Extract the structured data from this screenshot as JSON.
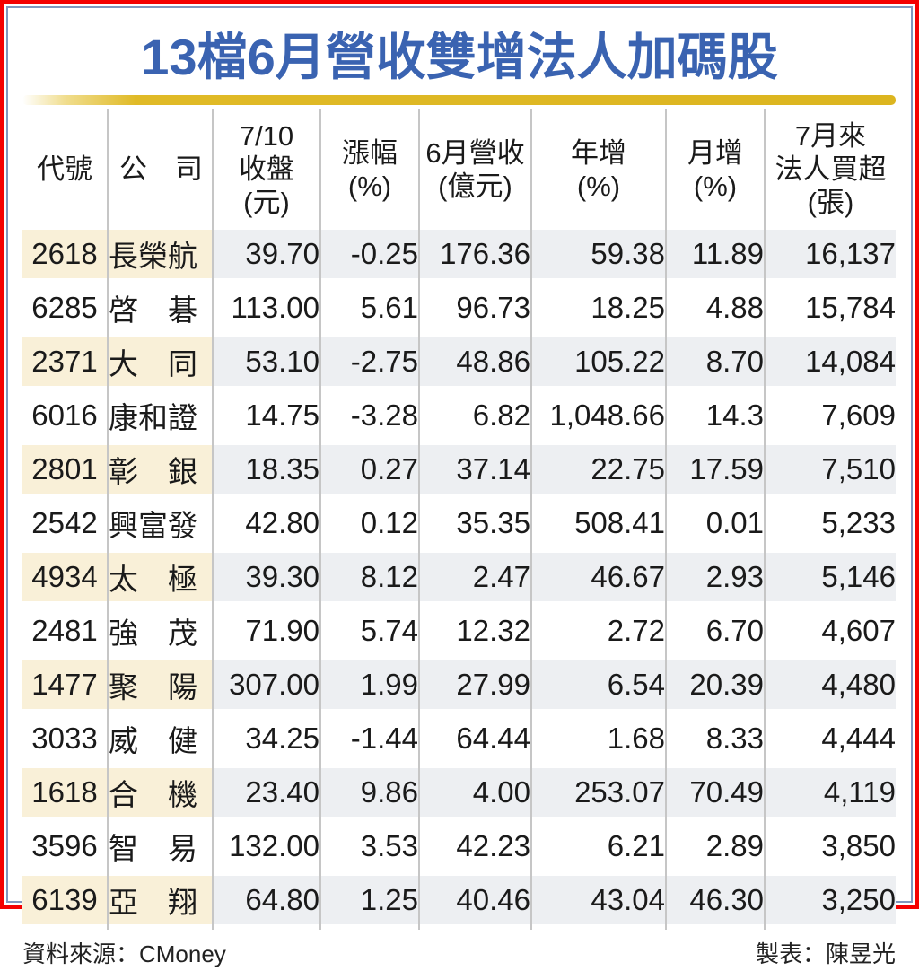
{
  "title": "13檔6月營收雙增法人加碼股",
  "chart_data": {
    "type": "table",
    "title": "13檔6月營收雙增法人加碼股",
    "columns": [
      {
        "id": "code",
        "label_lines": [
          "代號"
        ]
      },
      {
        "id": "company",
        "label_lines": [
          "公　司"
        ]
      },
      {
        "id": "close",
        "label_lines": [
          "7/10",
          "收盤",
          "(元)"
        ]
      },
      {
        "id": "change",
        "label_lines": [
          "漲幅",
          "(%)"
        ]
      },
      {
        "id": "revenue",
        "label_lines": [
          "6月營收",
          "(億元)"
        ]
      },
      {
        "id": "yoy",
        "label_lines": [
          "年增",
          "(%)"
        ]
      },
      {
        "id": "mom",
        "label_lines": [
          "月增",
          "(%)"
        ]
      },
      {
        "id": "buy",
        "label_lines": [
          "7月來",
          "法人買超",
          "(張)"
        ]
      }
    ],
    "rows": [
      {
        "code": "2618",
        "company": "長榮航",
        "close": "39.70",
        "change": "-0.25",
        "revenue": "176.36",
        "yoy": "59.38",
        "mom": "11.89",
        "buy": "16,137"
      },
      {
        "code": "6285",
        "company": "啓　碁",
        "close": "113.00",
        "change": "5.61",
        "revenue": "96.73",
        "yoy": "18.25",
        "mom": "4.88",
        "buy": "15,784"
      },
      {
        "code": "2371",
        "company": "大　同",
        "close": "53.10",
        "change": "-2.75",
        "revenue": "48.86",
        "yoy": "105.22",
        "mom": "8.70",
        "buy": "14,084"
      },
      {
        "code": "6016",
        "company": "康和證",
        "close": "14.75",
        "change": "-3.28",
        "revenue": "6.82",
        "yoy": "1,048.66",
        "mom": "14.3",
        "buy": "7,609"
      },
      {
        "code": "2801",
        "company": "彰　銀",
        "close": "18.35",
        "change": "0.27",
        "revenue": "37.14",
        "yoy": "22.75",
        "mom": "17.59",
        "buy": "7,510"
      },
      {
        "code": "2542",
        "company": "興富發",
        "close": "42.80",
        "change": "0.12",
        "revenue": "35.35",
        "yoy": "508.41",
        "mom": "0.01",
        "buy": "5,233"
      },
      {
        "code": "4934",
        "company": "太　極",
        "close": "39.30",
        "change": "8.12",
        "revenue": "2.47",
        "yoy": "46.67",
        "mom": "2.93",
        "buy": "5,146"
      },
      {
        "code": "2481",
        "company": "強　茂",
        "close": "71.90",
        "change": "5.74",
        "revenue": "12.32",
        "yoy": "2.72",
        "mom": "6.70",
        "buy": "4,607"
      },
      {
        "code": "1477",
        "company": "聚　陽",
        "close": "307.00",
        "change": "1.99",
        "revenue": "27.99",
        "yoy": "6.54",
        "mom": "20.39",
        "buy": "4,480"
      },
      {
        "code": "3033",
        "company": "威　健",
        "close": "34.25",
        "change": "-1.44",
        "revenue": "64.44",
        "yoy": "1.68",
        "mom": "8.33",
        "buy": "4,444"
      },
      {
        "code": "1618",
        "company": "合　機",
        "close": "23.40",
        "change": "9.86",
        "revenue": "4.00",
        "yoy": "253.07",
        "mom": "70.49",
        "buy": "4,119"
      },
      {
        "code": "3596",
        "company": "智　易",
        "close": "132.00",
        "change": "3.53",
        "revenue": "42.23",
        "yoy": "6.21",
        "mom": "2.89",
        "buy": "3,850"
      },
      {
        "code": "6139",
        "company": "亞　翔",
        "close": "64.80",
        "change": "1.25",
        "revenue": "40.46",
        "yoy": "43.04",
        "mom": "46.30",
        "buy": "3,250"
      }
    ],
    "source": "資料來源：CMoney",
    "credit": "製表：陳昱光"
  },
  "footer": {
    "source": "資料來源：CMoney",
    "credit": "製表：陳昱光"
  },
  "colors": {
    "title_blue": "#3a63b1",
    "bar_gold": "#dcb51f",
    "row_cream": "#f9f0d8",
    "row_numeric_gray": "#edeff2",
    "grid_gray": "#c6c6c6",
    "frame_red": "#f40000",
    "frame_blue": "#8097bd"
  }
}
